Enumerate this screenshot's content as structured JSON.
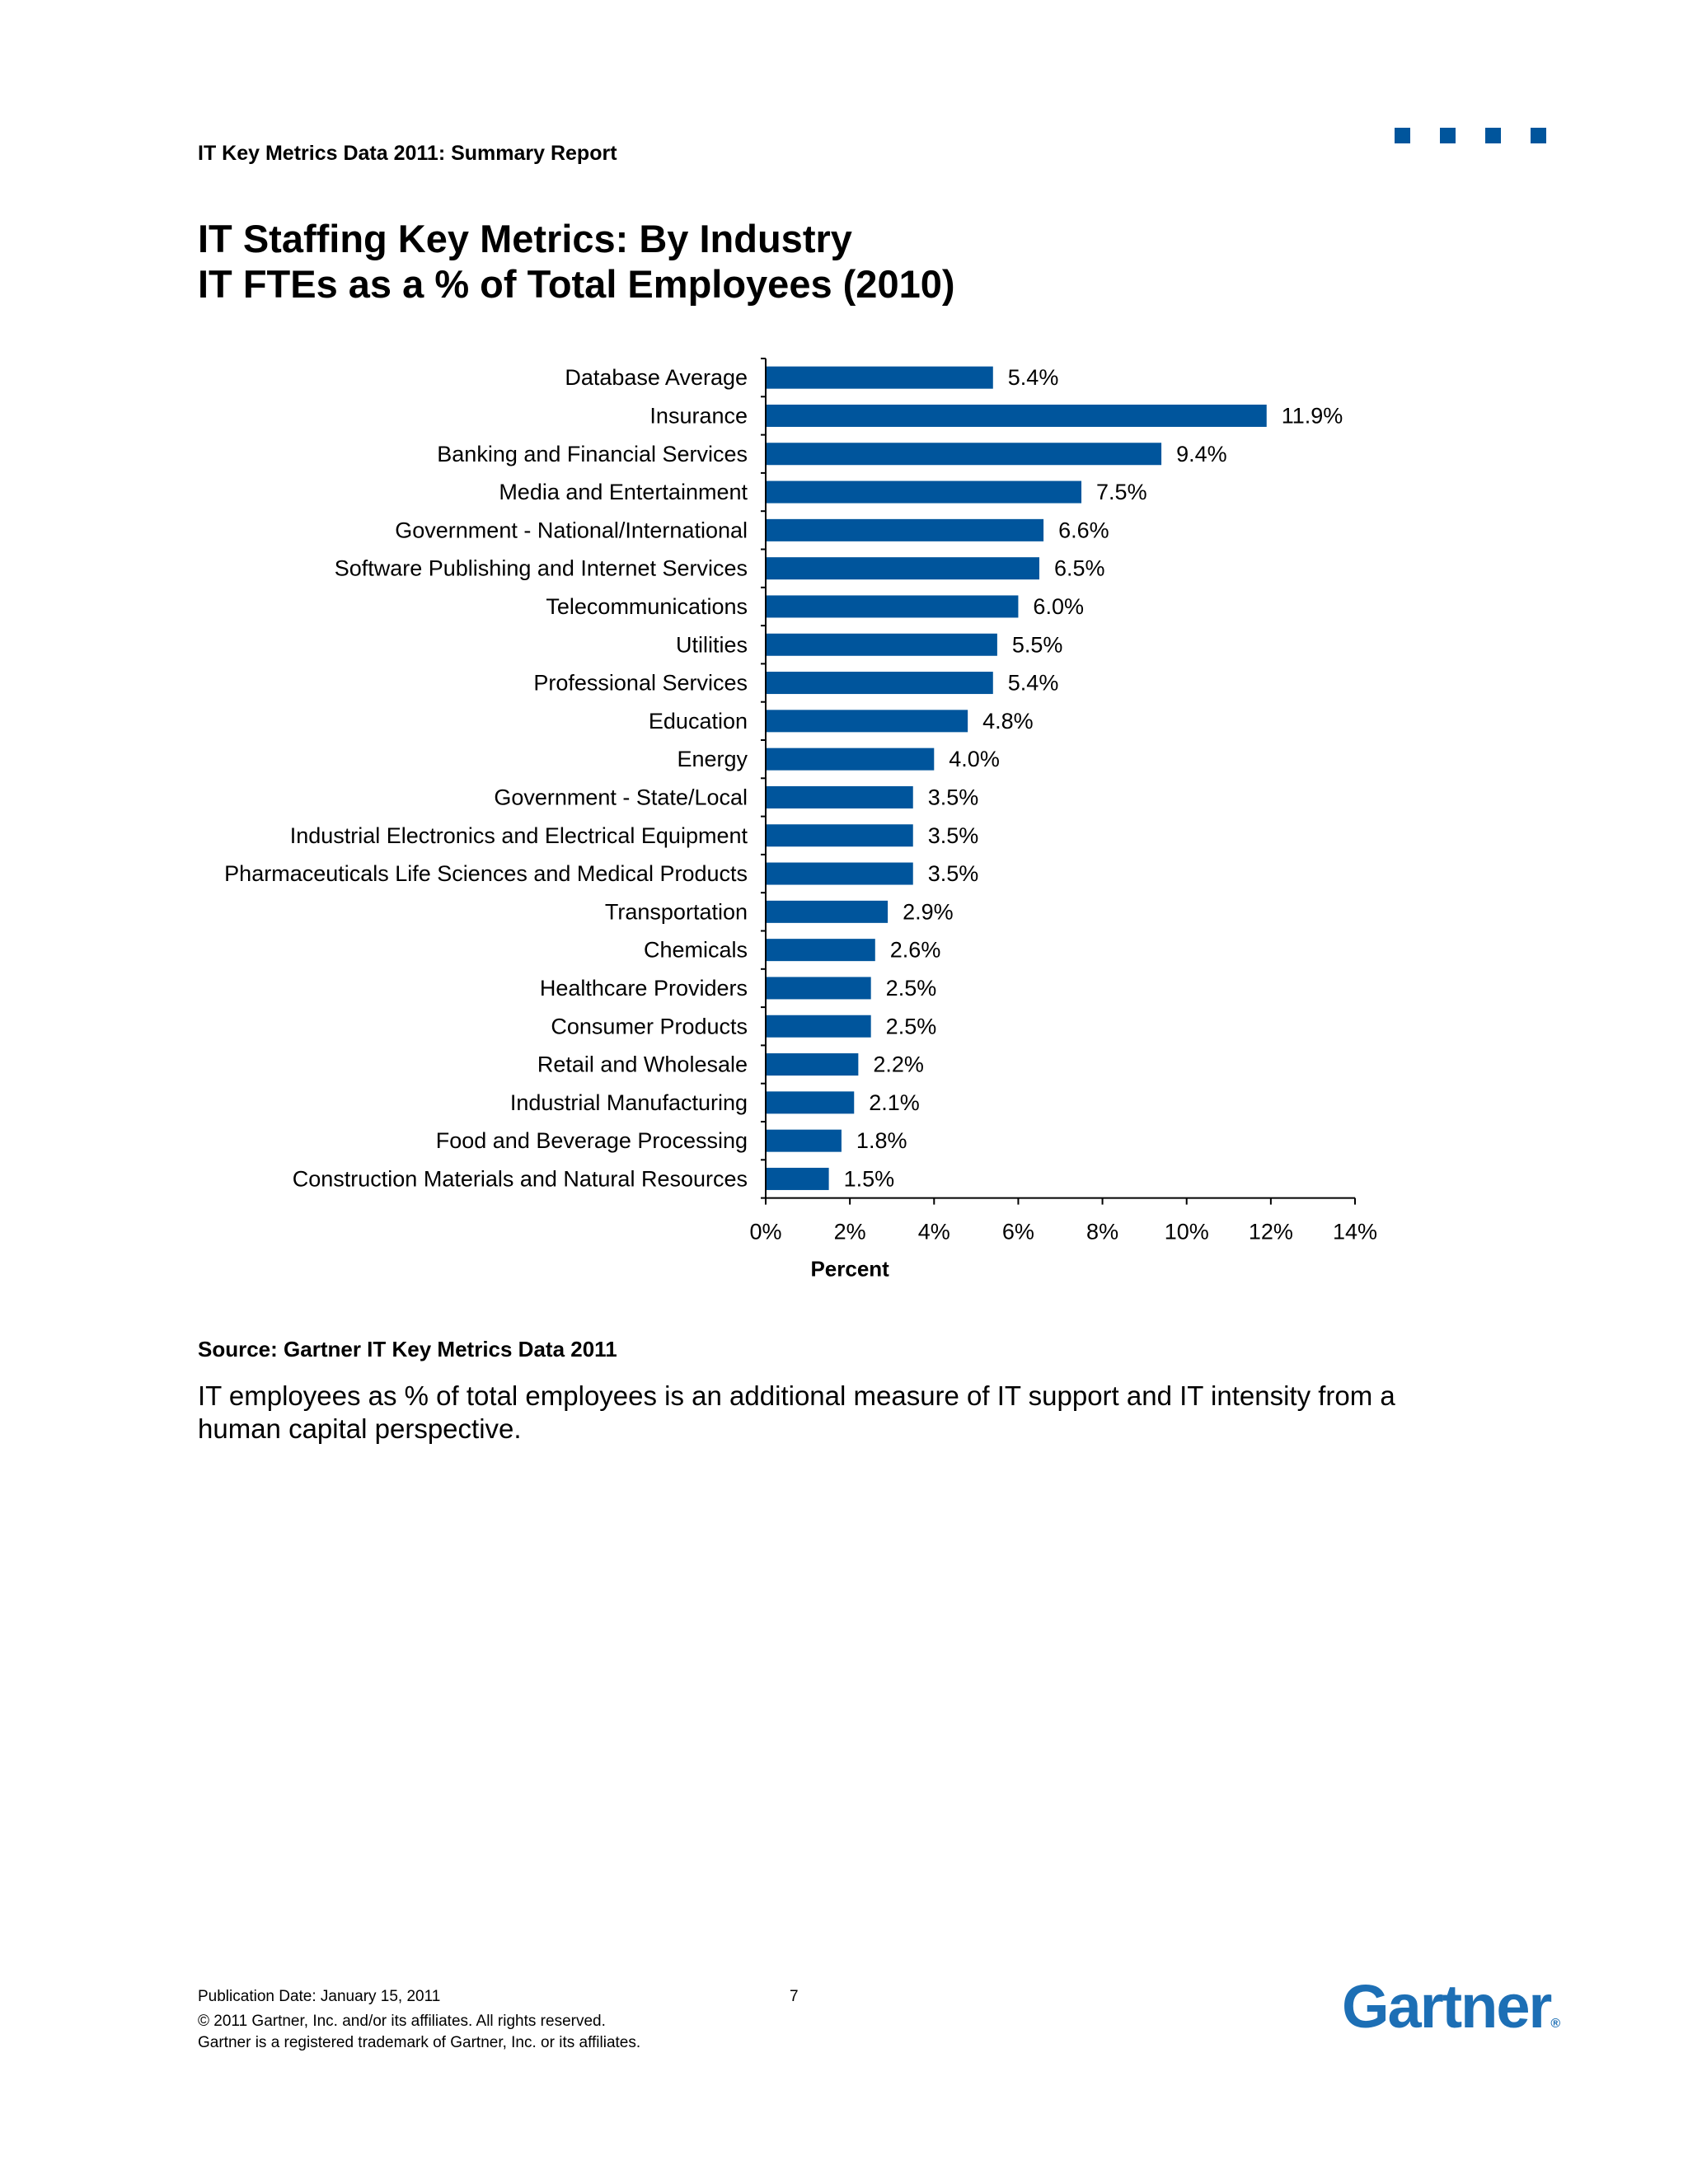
{
  "header": {
    "report_title": "IT Key Metrics Data 2011: Summary Report"
  },
  "page": {
    "title_line1": "IT Staffing Key Metrics: By Industry",
    "title_line2": "IT FTEs as a % of Total Employees (2010)"
  },
  "colors": {
    "bar": "#00559c",
    "accent": "#00559c",
    "logo": "#1d6fb5"
  },
  "icons": {
    "corner": "square-icon"
  },
  "chart_data": {
    "type": "bar",
    "orientation": "horizontal",
    "title": "",
    "xlabel": "Percent",
    "ylabel": "",
    "xlim": [
      0,
      14
    ],
    "xticks": [
      0,
      2,
      4,
      6,
      8,
      10,
      12,
      14
    ],
    "xtick_labels": [
      "0%",
      "2%",
      "4%",
      "6%",
      "8%",
      "10%",
      "12%",
      "14%"
    ],
    "grid": false,
    "categories": [
      "Database Average",
      "Insurance",
      "Banking and Financial Services",
      "Media and Entertainment",
      "Government - National/International",
      "Software Publishing and Internet Services",
      "Telecommunications",
      "Utilities",
      "Professional Services",
      "Education",
      "Energy",
      "Government - State/Local",
      "Industrial Electronics and Electrical Equipment",
      "Pharmaceuticals Life Sciences and Medical Products",
      "Transportation",
      "Chemicals",
      "Healthcare Providers",
      "Consumer Products",
      "Retail and Wholesale",
      "Industrial Manufacturing",
      "Food and Beverage Processing",
      "Construction Materials and Natural Resources"
    ],
    "values": [
      5.4,
      11.9,
      9.4,
      7.5,
      6.6,
      6.5,
      6.0,
      5.5,
      5.4,
      4.8,
      4.0,
      3.5,
      3.5,
      3.5,
      2.9,
      2.6,
      2.5,
      2.5,
      2.2,
      2.1,
      1.8,
      1.5
    ],
    "value_labels": [
      "5.4%",
      "11.9%",
      "9.4%",
      "7.5%",
      "6.6%",
      "6.5%",
      "6.0%",
      "5.5%",
      "5.4%",
      "4.8%",
      "4.0%",
      "3.5%",
      "3.5%",
      "3.5%",
      "2.9%",
      "2.6%",
      "2.5%",
      "2.5%",
      "2.2%",
      "2.1%",
      "1.8%",
      "1.5%"
    ]
  },
  "source": "Source: Gartner IT Key Metrics Data 2011",
  "description": "IT employees as % of total employees is an additional measure of IT support and IT intensity from a human capital perspective.",
  "footer": {
    "publication_date": "Publication Date: January 15,  2011",
    "page_number": "7",
    "copyright": "© 2011 Gartner, Inc. and/or its affiliates. All rights reserved.",
    "trademark": "Gartner is a registered trademark of Gartner, Inc. or its affiliates."
  },
  "logo": {
    "text": "Gartner",
    "mark": "®"
  }
}
